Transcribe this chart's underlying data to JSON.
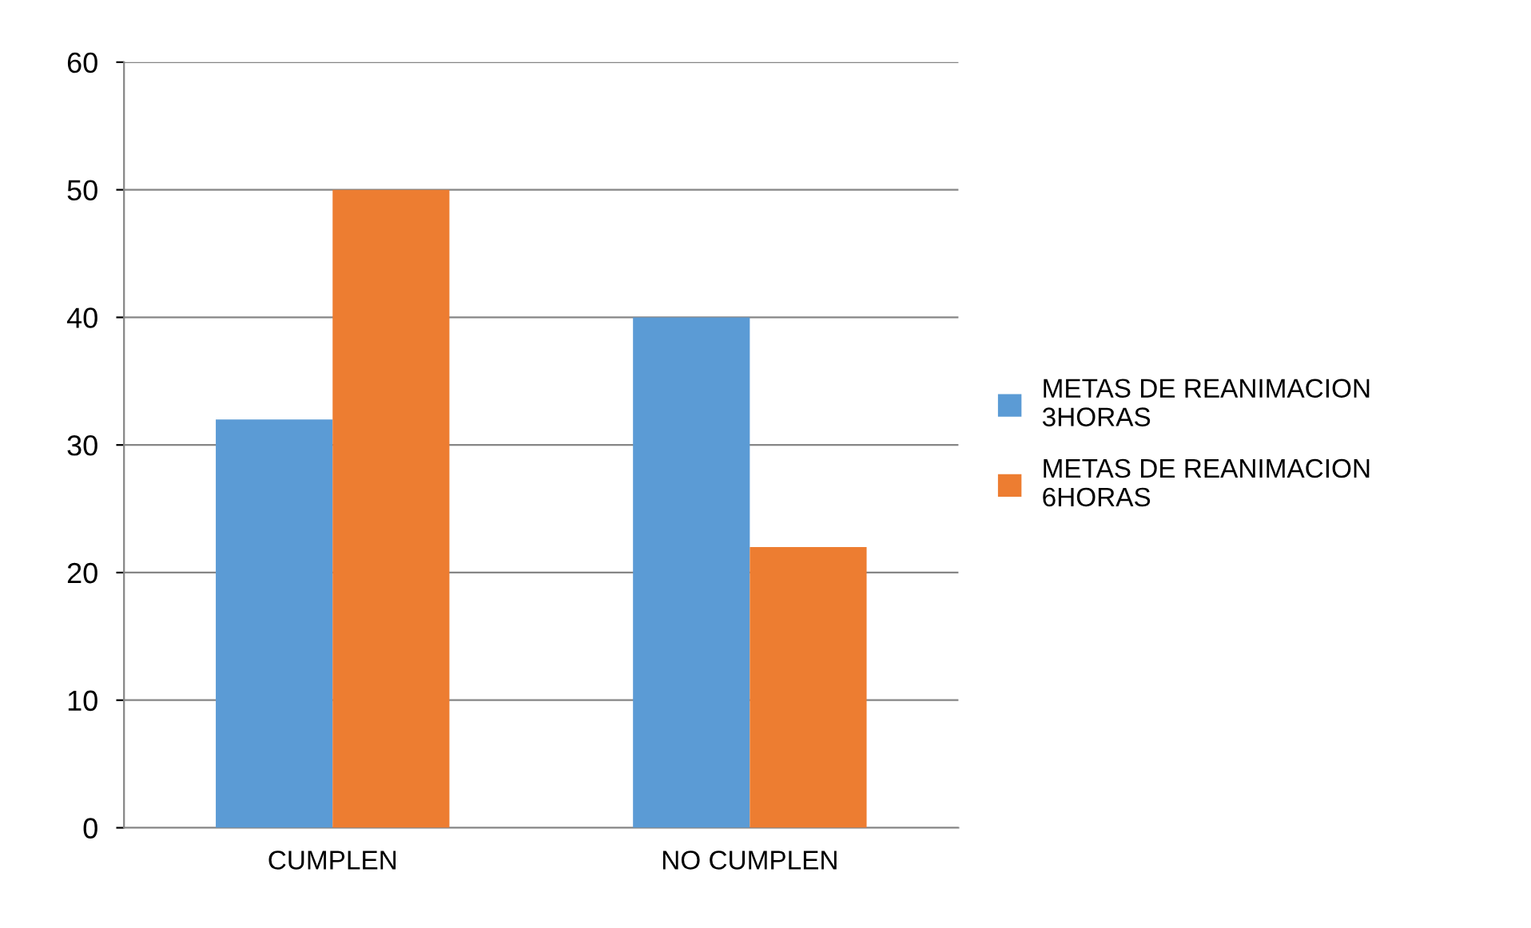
{
  "chart_data": {
    "type": "bar",
    "categories": [
      "CUMPLEN",
      "NO CUMPLEN"
    ],
    "series": [
      {
        "name": "METAS DE REANIMACION 3HORAS",
        "color": "#5b9bd5",
        "values": [
          32,
          40
        ]
      },
      {
        "name": "METAS DE REANIMACION 6HORAS",
        "color": "#ed7d31",
        "values": [
          50,
          22
        ]
      }
    ],
    "ylim": [
      0,
      60
    ],
    "yticks": [
      0,
      10,
      20,
      30,
      40,
      50,
      60
    ],
    "grid": "y",
    "legend": "right"
  }
}
